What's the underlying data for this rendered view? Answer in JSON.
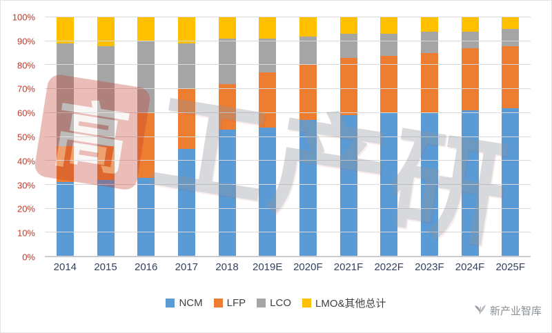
{
  "chart_data": {
    "type": "bar",
    "stacked": true,
    "percent": true,
    "title": "",
    "xlabel": "",
    "ylabel": "",
    "ylim": [
      0,
      100
    ],
    "ytick_step": 10,
    "yticks": [
      "0%",
      "10%",
      "20%",
      "30%",
      "40%",
      "50%",
      "60%",
      "70%",
      "80%",
      "90%",
      "100%"
    ],
    "grid": true,
    "legend_position": "bottom",
    "categories": [
      "2014",
      "2015",
      "2016",
      "2017",
      "2018",
      "2019E",
      "2020F",
      "2021F",
      "2022F",
      "2023F",
      "2024F",
      "2025F"
    ],
    "series": [
      {
        "name": "NCM",
        "color": "#5B9BD5",
        "values": [
          31,
          32,
          33,
          45,
          53,
          54,
          57,
          59,
          60,
          60,
          61,
          62
        ]
      },
      {
        "name": "LFP",
        "color": "#ED7D31",
        "values": [
          15,
          14,
          27,
          25,
          19,
          23,
          23,
          24,
          24,
          25,
          26,
          26
        ]
      },
      {
        "name": "LCO",
        "color": "#A5A5A5",
        "values": [
          43,
          42,
          30,
          19,
          19,
          14,
          12,
          10,
          9,
          9,
          7,
          7
        ]
      },
      {
        "name": "LMO&其他总计",
        "color": "#FFC000",
        "values": [
          11,
          12,
          10,
          11,
          9,
          9,
          8,
          7,
          7,
          6,
          6,
          5
        ]
      }
    ]
  },
  "watermark": {
    "logo_char": "高",
    "rest_text": "工产研"
  },
  "brand": {
    "label": "新产业智库"
  }
}
